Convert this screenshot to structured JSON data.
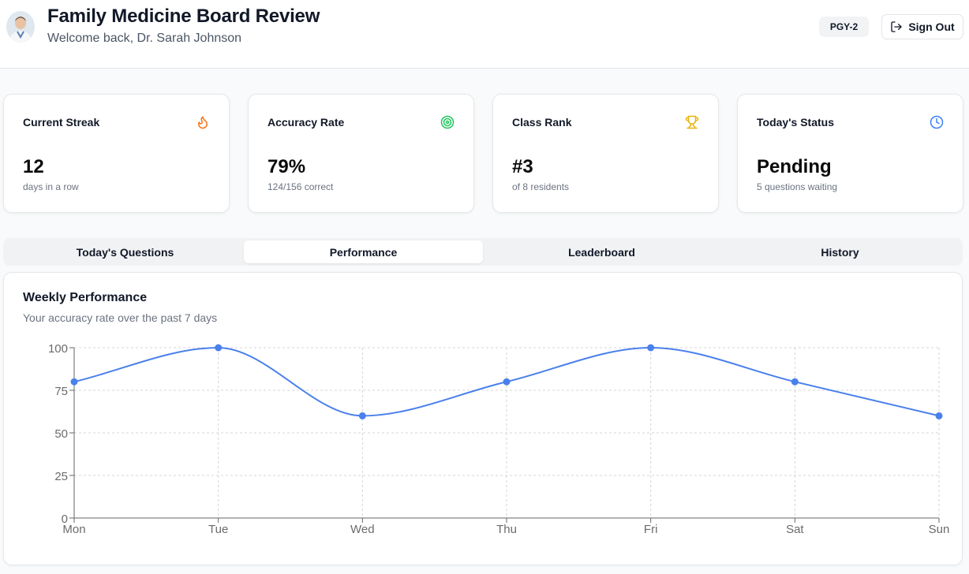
{
  "header": {
    "title": "Family Medicine Board Review",
    "welcome": "Welcome back, Dr. Sarah Johnson",
    "badge": "PGY-2",
    "sign_out": "Sign Out"
  },
  "stats": [
    {
      "label": "Current Streak",
      "value": "12",
      "sub": "days in a row",
      "icon": "flame-icon",
      "color": "#f97316"
    },
    {
      "label": "Accuracy Rate",
      "value": "79%",
      "sub": "124/156 correct",
      "icon": "target-icon",
      "color": "#22c55e"
    },
    {
      "label": "Class Rank",
      "value": "#3",
      "sub": "of 8 residents",
      "icon": "trophy-icon",
      "color": "#eab308"
    },
    {
      "label": "Today's Status",
      "value": "Pending",
      "sub": "5 questions waiting",
      "icon": "clock-icon",
      "color": "#3b82f6"
    }
  ],
  "tabs": [
    {
      "label": "Today's Questions",
      "active": false
    },
    {
      "label": "Performance",
      "active": true
    },
    {
      "label": "Leaderboard",
      "active": false
    },
    {
      "label": "History",
      "active": false
    }
  ],
  "panel": {
    "title": "Weekly Performance",
    "subtitle": "Your accuracy rate over the past 7 days"
  },
  "chart_data": {
    "type": "line",
    "categories": [
      "Mon",
      "Tue",
      "Wed",
      "Thu",
      "Fri",
      "Sat",
      "Sun"
    ],
    "series": [
      {
        "values": [
          80,
          100,
          60,
          80,
          100,
          80,
          60
        ]
      }
    ],
    "yticks": [
      0,
      25,
      50,
      75,
      100
    ],
    "ylim": [
      0,
      100
    ],
    "grid": true,
    "line_color": "#4a80ec"
  }
}
